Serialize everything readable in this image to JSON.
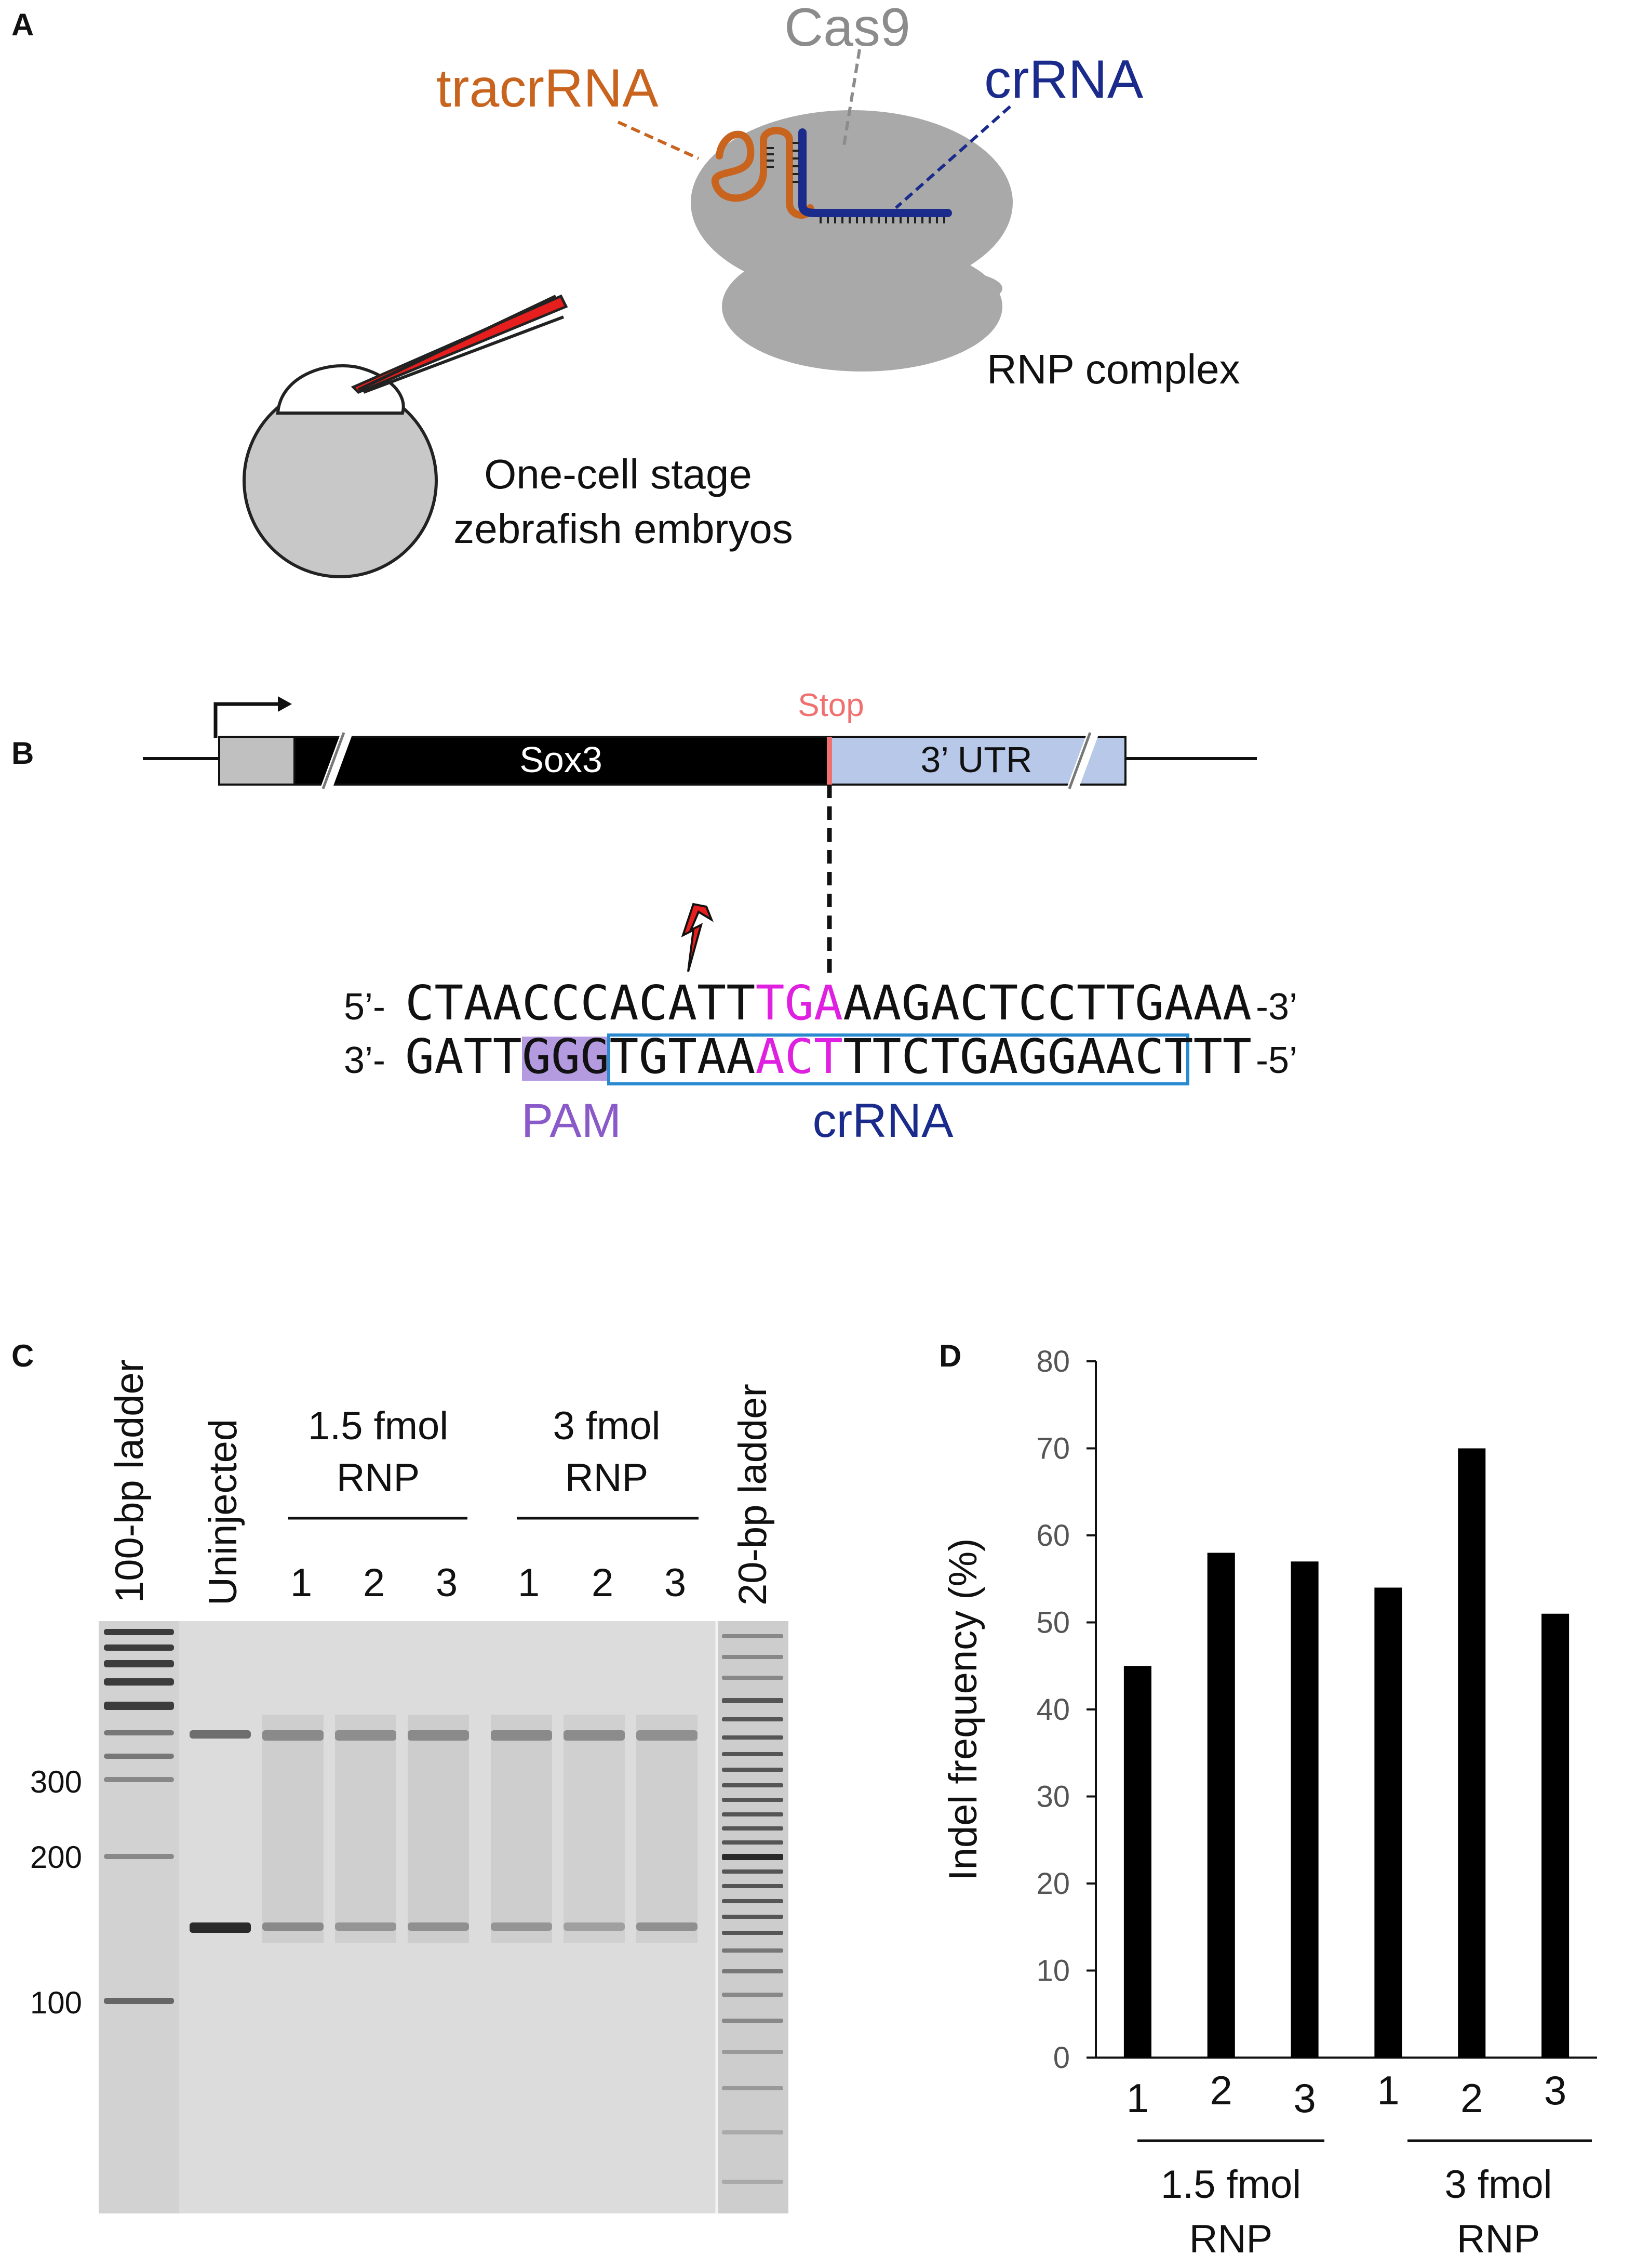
{
  "panels": {
    "a": "A",
    "b": "B",
    "c": "C",
    "d": "D"
  },
  "panel_a": {
    "tracrrna": "tracrRNA",
    "cas9": "Cas9",
    "crrna": "crRNA",
    "rnp_complex": "RNP complex",
    "embryo_line1": "One-cell stage",
    "embryo_line2": "zebrafish embryos",
    "colors": {
      "tracrrna": "#c8641e",
      "cas9": "#8c8c8c",
      "crrna": "#1a2b8c",
      "needle": "#e61e1e"
    }
  },
  "panel_b": {
    "stop": "Stop",
    "gene": "Sox3",
    "utr": "3’ UTR",
    "top_5": "5’-",
    "top_seq_a": "CTAACCCACATT",
    "top_seq_stop": "TGA",
    "top_seq_b": "AAGACTCCTTGAAA",
    "top_3": "-3’",
    "bot_3": "3’-",
    "bot_seq_a": "GATT",
    "bot_seq_pam": "GGG",
    "bot_seq_b": "TGTAA",
    "bot_seq_stop": "ACT",
    "bot_seq_c": "TTCTGAGGAACT",
    "bot_seq_d": "TT",
    "bot_5": "-5’",
    "pam": "PAM",
    "crrna": "crRNA",
    "colors": {
      "stop": "#f07070",
      "utr": "#b8c8e8",
      "stop_codon": "#e020e0",
      "pam": "#b49be0",
      "crrna_box": "#2a8ad0"
    }
  },
  "panel_c": {
    "lane_labels": [
      "100-bp ladder",
      "Uninjected",
      "20-bp ladder"
    ],
    "group1_line1": "1.5 fmol",
    "group1_line2": "RNP",
    "group2_line1": "3 fmol",
    "group2_line2": "RNP",
    "lane_numbers": [
      "1",
      "2",
      "3",
      "1",
      "2",
      "3"
    ],
    "size_markers": [
      "300",
      "200",
      "100"
    ]
  },
  "chart_data": {
    "type": "bar",
    "categories": [
      "1",
      "2",
      "3",
      "1",
      "2",
      "3"
    ],
    "values": [
      45,
      58,
      57,
      54,
      70,
      51
    ],
    "ylabel": "Indel frequency (%)",
    "ylim": [
      0,
      80
    ],
    "yticks": [
      "0",
      "10",
      "20",
      "30",
      "40",
      "50",
      "60",
      "70",
      "80"
    ],
    "groups": [
      {
        "line1": "1.5 fmol",
        "line2": "RNP"
      },
      {
        "line1": "3 fmol",
        "line2": "RNP"
      }
    ],
    "grid": false,
    "bar_color": "#000000"
  }
}
